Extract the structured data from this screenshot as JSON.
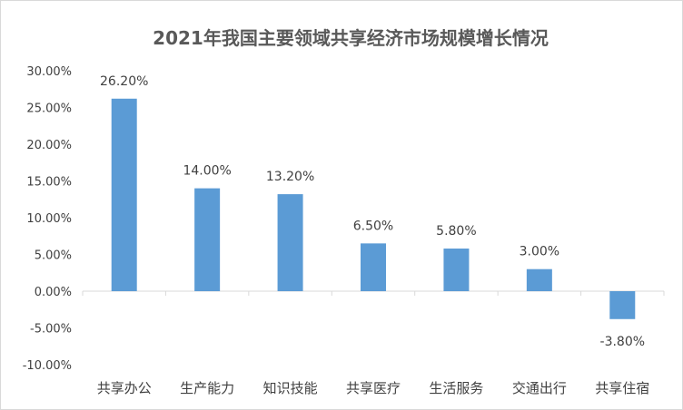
{
  "chart_data": {
    "type": "bar",
    "title": "2021年我国主要领域共享经济市场规模增长情况",
    "categories": [
      "共享办公",
      "生产能力",
      "知识技能",
      "共享医疗",
      "生活服务",
      "交通出行",
      "共享住宿"
    ],
    "values": [
      26.2,
      14.0,
      13.2,
      6.5,
      5.8,
      3.0,
      -3.8
    ],
    "data_labels": [
      "26.20%",
      "14.00%",
      "13.20%",
      "6.50%",
      "5.80%",
      "3.00%",
      "-3.80%"
    ],
    "y_ticks": [
      30,
      25,
      20,
      15,
      10,
      5,
      0,
      -5,
      -10
    ],
    "y_tick_labels": [
      "30.00%",
      "25.00%",
      "20.00%",
      "15.00%",
      "10.00%",
      "5.00%",
      "0.00%",
      "-5.00%",
      "-10.00%"
    ],
    "ylim": [
      -10,
      30
    ],
    "xlabel": "",
    "ylabel": "",
    "grid": false,
    "legend": "none",
    "bar_color": "#5b9bd5"
  }
}
